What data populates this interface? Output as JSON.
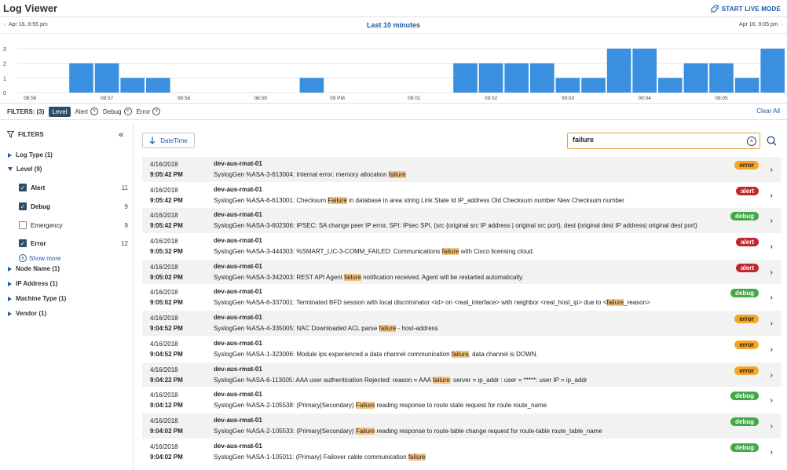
{
  "header": {
    "title": "Log Viewer",
    "live_mode_label": "START LIVE MODE"
  },
  "time_nav": {
    "start": "Apr 16, 8:55 pm",
    "range": "Last 10 minutes",
    "end": "Apr 16, 9:05 pm"
  },
  "chart_data": {
    "type": "bar",
    "y_ticks": [
      "0",
      "1",
      "2",
      "3"
    ],
    "ylim": [
      0,
      3
    ],
    "x_tick_labels": [
      "08:56",
      "08:57",
      "08:58",
      "08:59",
      "09 PM",
      "09:01",
      "09:02",
      "09:03",
      "09:04",
      "09:05"
    ],
    "values": [
      0,
      0,
      2,
      2,
      1,
      1,
      0,
      0,
      0,
      0,
      0,
      1,
      0,
      0,
      0,
      0,
      0,
      2,
      2,
      2,
      2,
      1,
      1,
      3,
      3,
      1,
      2,
      2,
      1,
      3
    ],
    "grid": true,
    "color": "#3a8fe0"
  },
  "filters": {
    "label": "FILTERS: (3)",
    "active_group": "Level",
    "chips": [
      "Alert",
      "Debug",
      "Error"
    ],
    "clear_all": "Clear All"
  },
  "sidebar": {
    "title": "FILTERS",
    "groups": [
      {
        "label": "Log Type (1)"
      },
      {
        "label": "Level (9)"
      },
      {
        "label": "Node Name (1)"
      },
      {
        "label": "IP Address (1)"
      },
      {
        "label": "Machine Type (1)"
      },
      {
        "label": "Vendor (1)"
      }
    ],
    "level_options": [
      {
        "name": "Alert",
        "count": "11",
        "checked": true
      },
      {
        "name": "Debug",
        "count": "9",
        "checked": true
      },
      {
        "name": "Emergency",
        "count": "9",
        "checked": false
      },
      {
        "name": "Error",
        "count": "12",
        "checked": true
      }
    ],
    "show_more": "Show more"
  },
  "toolbar": {
    "sort_label": "DateTime",
    "search_value": "failure"
  },
  "logs": [
    {
      "date": "4/16/2018",
      "time": "9:05:42 PM",
      "host": "dev-aus-rmat-01",
      "pre": "SyslogGen %ASA-3-613004: Internal error: memory allocation ",
      "hl": "failure",
      "post": "",
      "level": "error"
    },
    {
      "date": "4/16/2018",
      "time": "9:05:42 PM",
      "host": "dev-aus-rmat-01",
      "pre": "SyslogGen %ASA-6-613001: Checksum ",
      "hl": "Failure",
      "post": " in database in area string Link State Id IP_address Old Checksum number New Checksum number",
      "level": "alert"
    },
    {
      "date": "4/16/2018",
      "time": "9:05:42 PM",
      "host": "dev-aus-rmat-01",
      "pre": "SyslogGen %ASA-3-602306: IPSEC: SA change peer IP error, SPI: IPsec SPI, (src {original src IP address | original src port}, dest {original dest IP address| original dest port}",
      "hl": "",
      "post": "",
      "level": "debug"
    },
    {
      "date": "4/16/2018",
      "time": "9:05:32 PM",
      "host": "dev-aus-rmat-01",
      "pre": "SyslogGen %ASA-3-444303: %SMART_LIC-3-COMM_FAILED: Communications ",
      "hl": "failure",
      "post": " with Cisco licensing cloud.",
      "level": "alert"
    },
    {
      "date": "4/16/2018",
      "time": "9:05:02 PM",
      "host": "dev-aus-rmat-01",
      "pre": "SyslogGen %ASA-3-342003: REST API Agent ",
      "hl": "failure",
      "post": " notification received. Agent will be restarted automatically.",
      "level": "alert"
    },
    {
      "date": "4/16/2018",
      "time": "9:05:02 PM",
      "host": "dev-aus-rmat-01",
      "pre": "SyslogGen %ASA-6-337001: Terminated BFD session with local discriminator <id> on <real_interface> with neighbor <real_host_ip> due to <",
      "hl": "failure",
      "post": "_reason>",
      "level": "debug"
    },
    {
      "date": "4/16/2018",
      "time": "9:04:52 PM",
      "host": "dev-aus-rmat-01",
      "pre": "SyslogGen %ASA-4-335005: NAC Downloaded ACL parse ",
      "hl": "failure",
      "post": " - host-address",
      "level": "error"
    },
    {
      "date": "4/16/2018",
      "time": "9:04:52 PM",
      "host": "dev-aus-rmat-01",
      "pre": "SyslogGen %ASA-1-323006: Module ips experienced a data channel communication ",
      "hl": "failure",
      "post": ", data channel is DOWN.",
      "level": "error"
    },
    {
      "date": "4/16/2018",
      "time": "9:04:22 PM",
      "host": "dev-aus-rmat-01",
      "pre": "SyslogGen %ASA-6-113005: AAA user authentication Rejected: reason = AAA ",
      "hl": "failure",
      "post": ": server = ip_addr : user = *****: user IP = ip_addr",
      "level": "error"
    },
    {
      "date": "4/16/2018",
      "time": "9:04:12 PM",
      "host": "dev-aus-rmat-01",
      "pre": "SyslogGen %ASA-2-105538: (Primary|Secondary) ",
      "hl": "Failure",
      "post": " reading response to route state request for route route_name",
      "level": "debug"
    },
    {
      "date": "4/16/2018",
      "time": "9:04:02 PM",
      "host": "dev-aus-rmat-01",
      "pre": "SyslogGen %ASA-2-105533: (Primary|Secondary) ",
      "hl": "Failure",
      "post": " reading response to route-table change request for route-table route_table_name",
      "level": "debug"
    },
    {
      "date": "4/16/2018",
      "time": "9:04:02 PM",
      "host": "dev-aus-rmat-01",
      "pre": "SyslogGen %ASA-1-105011: (Primary) Failover cable communication ",
      "hl": "failure",
      "post": "",
      "level": "debug"
    }
  ]
}
